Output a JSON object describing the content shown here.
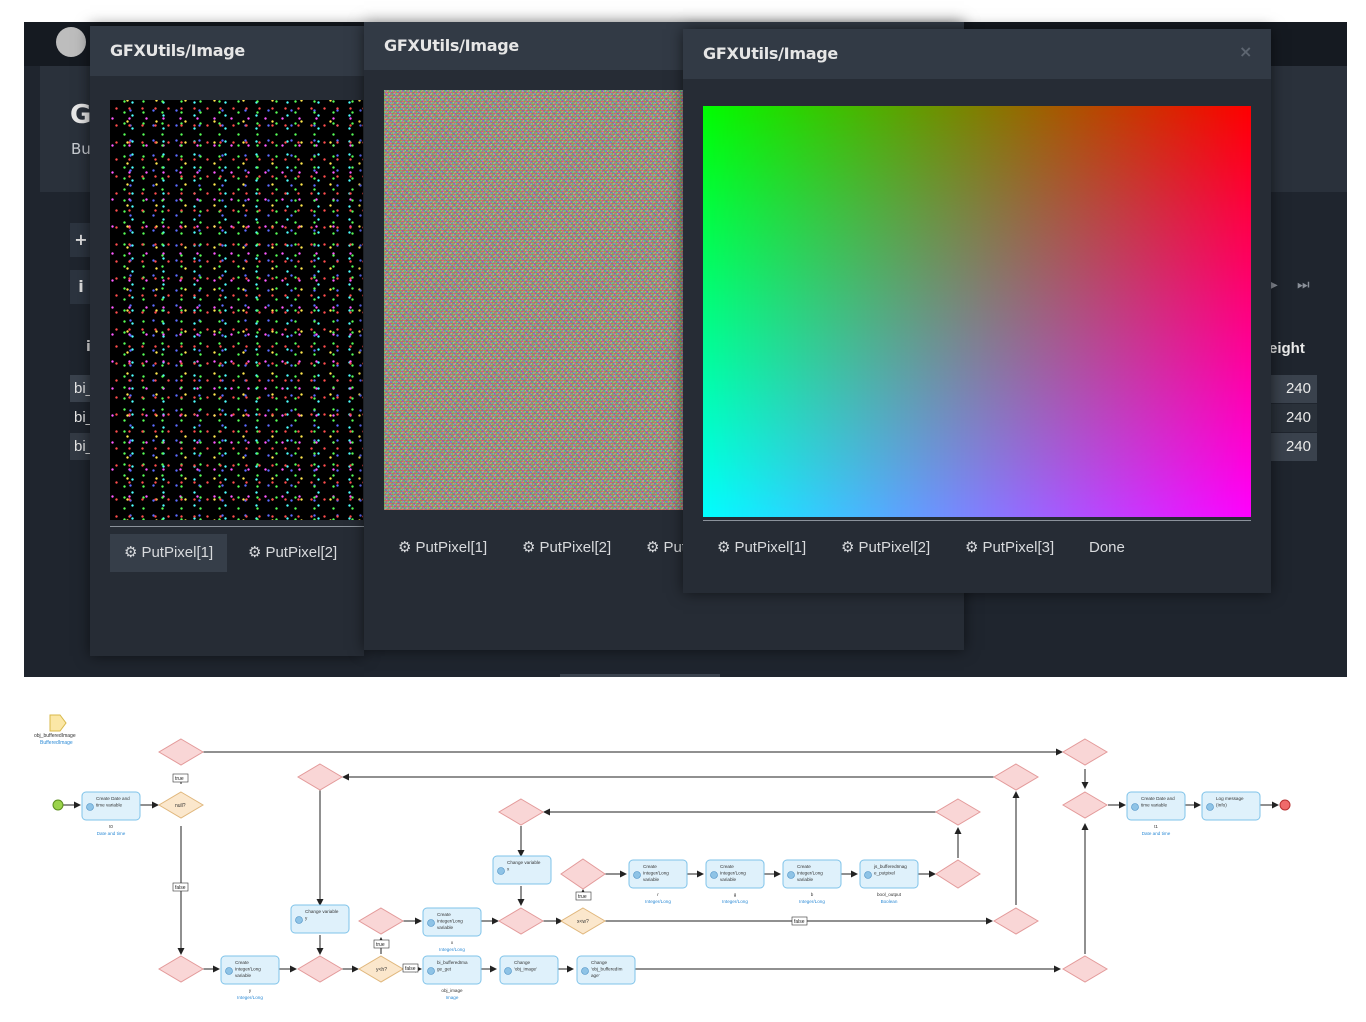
{
  "background_app": {
    "title_fragment": "G",
    "subtitle_fragment": "Bu",
    "button_1": "+",
    "button_2": "i",
    "column_header_fragment": "i",
    "rows": [
      "bi_",
      "bi_",
      "bi_"
    ],
    "height_header": "eight",
    "height_values": [
      "240",
      "240",
      "240"
    ],
    "pager_next": "▶",
    "pager_last": "⏭"
  },
  "dialogs": [
    {
      "title": "GFXUtils/Image",
      "tabs": [
        "PutPixel[1]",
        "PutPixel[2]"
      ],
      "active_tab": "PutPixel[1]"
    },
    {
      "title": "GFXUtils/Image",
      "tabs": [
        "PutPixel[1]",
        "PutPixel[2]",
        "Put"
      ]
    },
    {
      "title": "GFXUtils/Image",
      "tabs": [
        "PutPixel[1]",
        "PutPixel[2]",
        "PutPixel[3]"
      ],
      "done_label": "Done",
      "close_icon": "×"
    }
  ],
  "icons": {
    "gear": "⚙",
    "close": "close-icon",
    "avatar": "avatar-circle"
  },
  "colors": {
    "app_bg": "#1f252e",
    "dialog_bg": "#262c35",
    "dialog_header": "#323a45",
    "node_fill": "#dff1fb",
    "node_stroke": "#7fc3ea",
    "gateway_fill": "#f9d6d6",
    "decision_fill": "#fbe7cc",
    "link": "#2d8bd6"
  },
  "flow": {
    "param": {
      "name": "obj_bufferedImage",
      "type": "BufferedImage"
    },
    "activities": [
      {
        "id": "a1",
        "label": [
          "Create Date and",
          "time variable"
        ],
        "out": "t0",
        "out_type": "Date and time"
      },
      {
        "id": "a2",
        "label": [
          "Create",
          "Integer/Long",
          "variable"
        ],
        "out": "y",
        "out_type": "Integer/Long"
      },
      {
        "id": "a3",
        "label": [
          "Change variable",
          "y"
        ]
      },
      {
        "id": "a4",
        "label": [
          "Create",
          "Integer/Long",
          "variable"
        ],
        "out": "x",
        "out_type": "Integer/Long"
      },
      {
        "id": "a5",
        "label": [
          "Change variable",
          "x"
        ]
      },
      {
        "id": "a6",
        "label": [
          "Create",
          "Integer/Long",
          "variable"
        ],
        "out": "r",
        "out_type": "Integer/Long"
      },
      {
        "id": "a7",
        "label": [
          "Create",
          "Integer/Long",
          "variable"
        ],
        "out": "g",
        "out_type": "Integer/Long"
      },
      {
        "id": "a8",
        "label": [
          "Create",
          "Integer/Long",
          "variable"
        ],
        "out": "b",
        "out_type": "Integer/Long"
      },
      {
        "id": "a9",
        "label": [
          "js_bufferedImag",
          "e_putpixel"
        ],
        "out": "bool_output",
        "out_type": "Boolean"
      },
      {
        "id": "a10",
        "label": [
          "bi_bufferedIma",
          "ge_get"
        ],
        "out": "obj_image",
        "out_type": "Image"
      },
      {
        "id": "a11",
        "label": [
          "Change",
          "'obj_image'"
        ]
      },
      {
        "id": "a12",
        "label": [
          "Change",
          "'obj_bufferedIm",
          "age'"
        ]
      },
      {
        "id": "a13",
        "label": [
          "Create Date and",
          "time variable"
        ],
        "out": "t1",
        "out_type": "Date and time"
      },
      {
        "id": "a14",
        "label": [
          "Log message",
          "(Info)"
        ]
      }
    ],
    "decisions": [
      "null?",
      "y<h?",
      "x<w?"
    ],
    "branch_labels": {
      "true": "true",
      "false": "false"
    }
  }
}
